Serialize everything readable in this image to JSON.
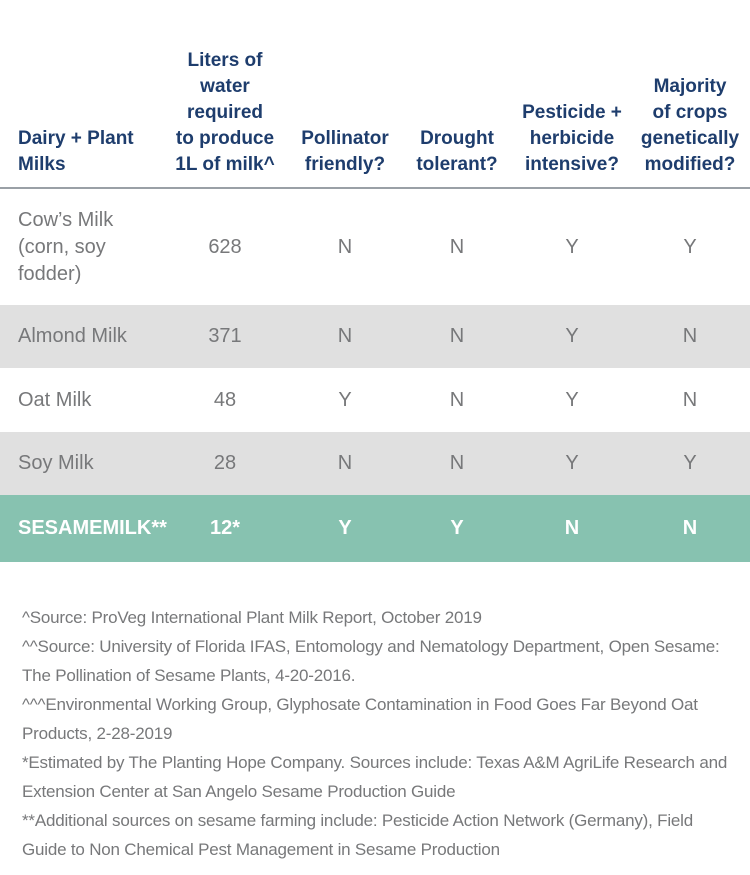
{
  "chart_data": {
    "type": "table",
    "columns": [
      "Dairy + Plant\nMilks",
      "Liters of\nwater\nrequired\nto produce\n1L of milk^",
      "Pollinator\nfriendly?",
      "Drought\ntolerant?",
      "Pesticide +\nherbicide\nintensive?",
      "Majority\nof crops\ngenetically\nmodified?"
    ],
    "rows": [
      [
        "Cow’s Milk\n(corn, soy\nfodder)",
        "628",
        "N",
        "N",
        "Y",
        "Y"
      ],
      [
        "Almond Milk",
        "371",
        "N",
        "N",
        "Y",
        "N"
      ],
      [
        "Oat Milk",
        "48",
        "Y",
        "N",
        "Y",
        "N"
      ],
      [
        "Soy Milk",
        "28",
        "N",
        "N",
        "Y",
        "Y"
      ],
      [
        "SESAMEMILK**",
        "12*",
        "Y",
        "Y",
        "N",
        "N"
      ]
    ],
    "title": "",
    "legend": null,
    "grid": "alternating-row-shading",
    "highlight_row": "SESAMEMILK**"
  },
  "footnotes": [
    "^Source: ProVeg International Plant Milk Report, October 2019",
    "^^Source: University of Florida IFAS, Entomology and Nematology Department, Open Sesame: The Pollination of Sesame Plants, 4-20-2016.",
    "^^^Environmental Working Group, Glyphosate Contamination in Food Goes Far Beyond Oat Products, 2-28-2019",
    "*Estimated by The Planting Hope Company. Sources include: Texas A&M AgriLife Research and Extension Center at San Angelo Sesame Production Guide",
    "**Additional sources on sesame farming include: Pesticide Action Network (Germany), Field Guide to Non Chemical Pest Management in Sesame Production"
  ],
  "colors": {
    "header_text": "#1e3d6d",
    "body_text": "#77787a",
    "alt_row_background": "#e0e0e0",
    "highlight_row_background": "#87c2b0",
    "highlight_row_text": "#ffffff",
    "divider": "#9aa0a6",
    "page_background": "#ffffff"
  }
}
